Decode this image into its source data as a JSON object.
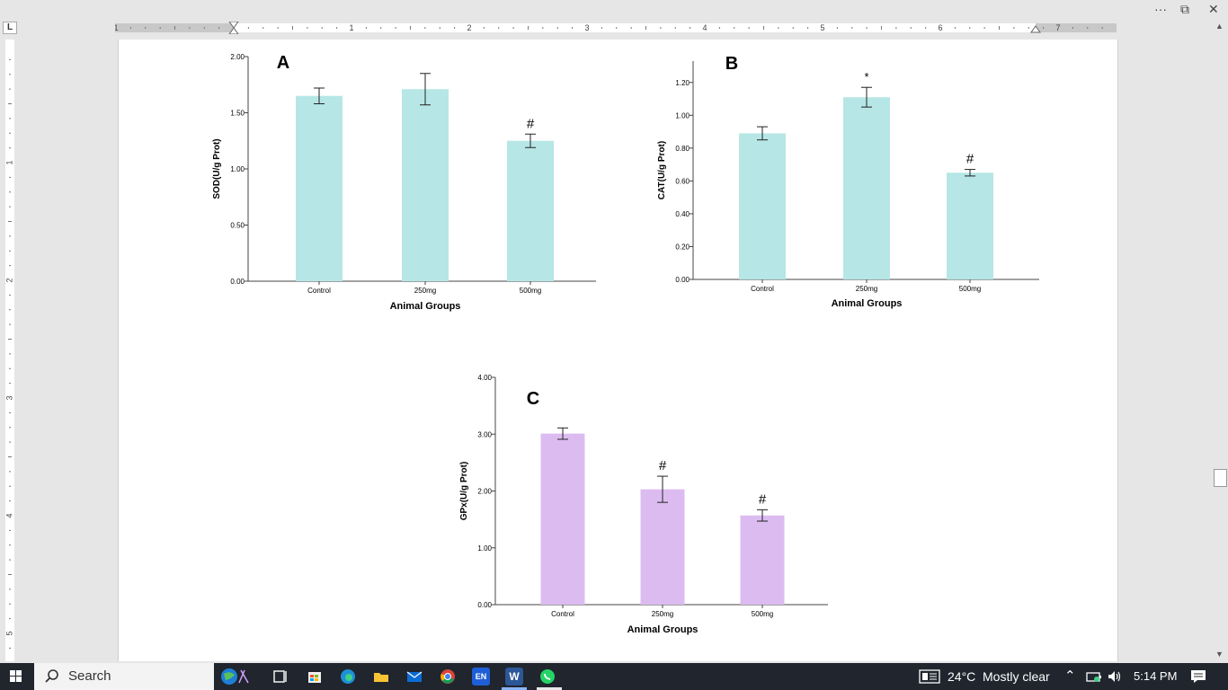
{
  "window": {
    "more_label": "···",
    "restore_label": "⧉",
    "close_label": "✕"
  },
  "ruler": {
    "tab_marker": "L",
    "h_labels": [
      "1",
      "1",
      "2",
      "3",
      "4",
      "5",
      "6",
      "7"
    ],
    "v_labels": [
      "1",
      "2",
      "3",
      "4",
      "5"
    ]
  },
  "chart_data": [
    {
      "type": "bar",
      "panel_label": "A",
      "categories": [
        "Control",
        "250mg",
        "500mg"
      ],
      "values": [
        1.65,
        1.71,
        1.25
      ],
      "errors": [
        0.07,
        0.14,
        0.06
      ],
      "significance": [
        "",
        "",
        "#"
      ],
      "ylabel": "SOD(U/g Prot)",
      "xlabel": "Animal Groups",
      "ylim": [
        0,
        2.0
      ],
      "yticks": [
        "0.00",
        "0.50",
        "1.00",
        "1.50",
        "2.00"
      ],
      "bar_color": "#b6e6e6"
    },
    {
      "type": "bar",
      "panel_label": "B",
      "categories": [
        "Control",
        "250mg",
        "500mg"
      ],
      "values": [
        0.89,
        1.11,
        0.65
      ],
      "errors": [
        0.04,
        0.06,
        0.02
      ],
      "significance": [
        "",
        "*",
        "#"
      ],
      "ylabel": "CAT(U/g Prot)",
      "xlabel": "Animal Groups",
      "ylim": [
        0,
        1.33
      ],
      "yticks": [
        "0.00",
        "0.20",
        "0.40",
        "0.60",
        "0.80",
        "1.00",
        "1.20"
      ],
      "bar_color": "#b6e6e6"
    },
    {
      "type": "bar",
      "panel_label": "C",
      "categories": [
        "Control",
        "250mg",
        "500mg"
      ],
      "values": [
        3.01,
        2.03,
        1.57
      ],
      "errors": [
        0.1,
        0.23,
        0.1
      ],
      "significance": [
        "",
        "#",
        "#"
      ],
      "ylabel": "GPx(U/g Prot)",
      "xlabel": "Animal Groups",
      "ylim": [
        0,
        4.0
      ],
      "yticks": [
        "0.00",
        "1.00",
        "2.00",
        "3.00",
        "4.00"
      ],
      "bar_color": "#dcbcf0"
    }
  ],
  "taskbar": {
    "search_label": "Search",
    "lang_icon_label": "EN",
    "word_icon_label": "W",
    "temperature": "24°C",
    "weather": "Mostly clear",
    "time": "5:14 PM"
  },
  "colors": {
    "taskbar": "#20252e",
    "page": "#ffffff",
    "workspace": "#e6e6e6"
  }
}
